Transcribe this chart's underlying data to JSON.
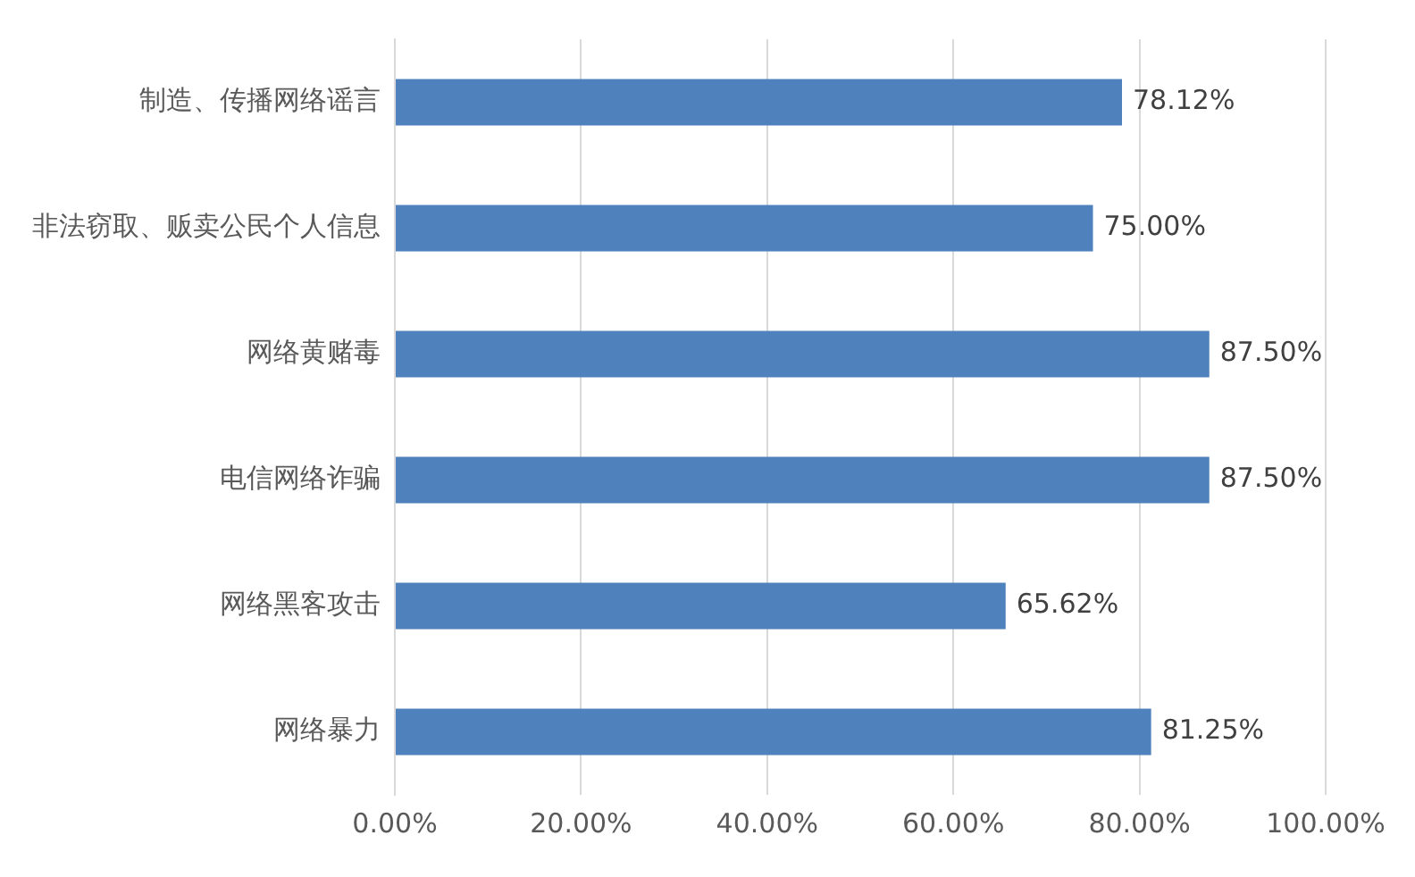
{
  "chart_data": {
    "type": "bar",
    "orientation": "horizontal",
    "categories": [
      "制造、传播网络谣言",
      "非法窃取、贩卖公民个人信息",
      "网络黄赌毒",
      "电信网络诈骗",
      "网络黑客攻击",
      "网络暴力"
    ],
    "values": [
      78.12,
      75.0,
      87.5,
      87.5,
      65.62,
      81.25
    ],
    "value_labels": [
      "78.12%",
      "75.00%",
      "87.50%",
      "87.50%",
      "65.62%",
      "81.25%"
    ],
    "color": "#4f81bd",
    "xlim": [
      0,
      100
    ],
    "xticks": [
      {
        "value": 0,
        "label": "0.00%"
      },
      {
        "value": 20,
        "label": "20.00%"
      },
      {
        "value": 40,
        "label": "40.00%"
      },
      {
        "value": 60,
        "label": "60.00%"
      },
      {
        "value": 80,
        "label": "80.00%"
      },
      {
        "value": 100,
        "label": "100.00%"
      }
    ],
    "grid": "x",
    "legend": false
  }
}
